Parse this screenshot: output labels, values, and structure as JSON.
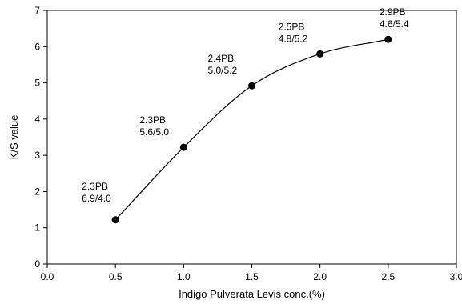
{
  "chart_data": {
    "type": "line",
    "title": "",
    "xlabel": "Indigo Pulverata Levis conc.(%)",
    "ylabel": "K/S value",
    "xlim": [
      0.0,
      3.0
    ],
    "ylim": [
      0,
      7
    ],
    "x_ticks": [
      "0.0",
      "0.5",
      "1.0",
      "1.5",
      "2.0",
      "2.5",
      "3.0"
    ],
    "y_ticks": [
      "0",
      "1",
      "2",
      "3",
      "4",
      "5",
      "6",
      "7"
    ],
    "grid": false,
    "smooth": true,
    "marker": "filled-circle",
    "line_color": "#000000",
    "x": [
      0.5,
      1.0,
      1.5,
      2.0,
      2.5
    ],
    "y": [
      1.22,
      3.22,
      4.92,
      5.8,
      6.2
    ],
    "point_labels": [
      {
        "line1": "2.3PB",
        "line2": "6.9/4.0"
      },
      {
        "line1": "2.3PB",
        "line2": "5.6/5.0"
      },
      {
        "line1": "2.4PB",
        "line2": "5.0/5.2"
      },
      {
        "line1": "2.5PB",
        "line2": "4.8/5.2"
      },
      {
        "line1": "2.9PB",
        "line2": "4.6/5.4"
      }
    ]
  }
}
